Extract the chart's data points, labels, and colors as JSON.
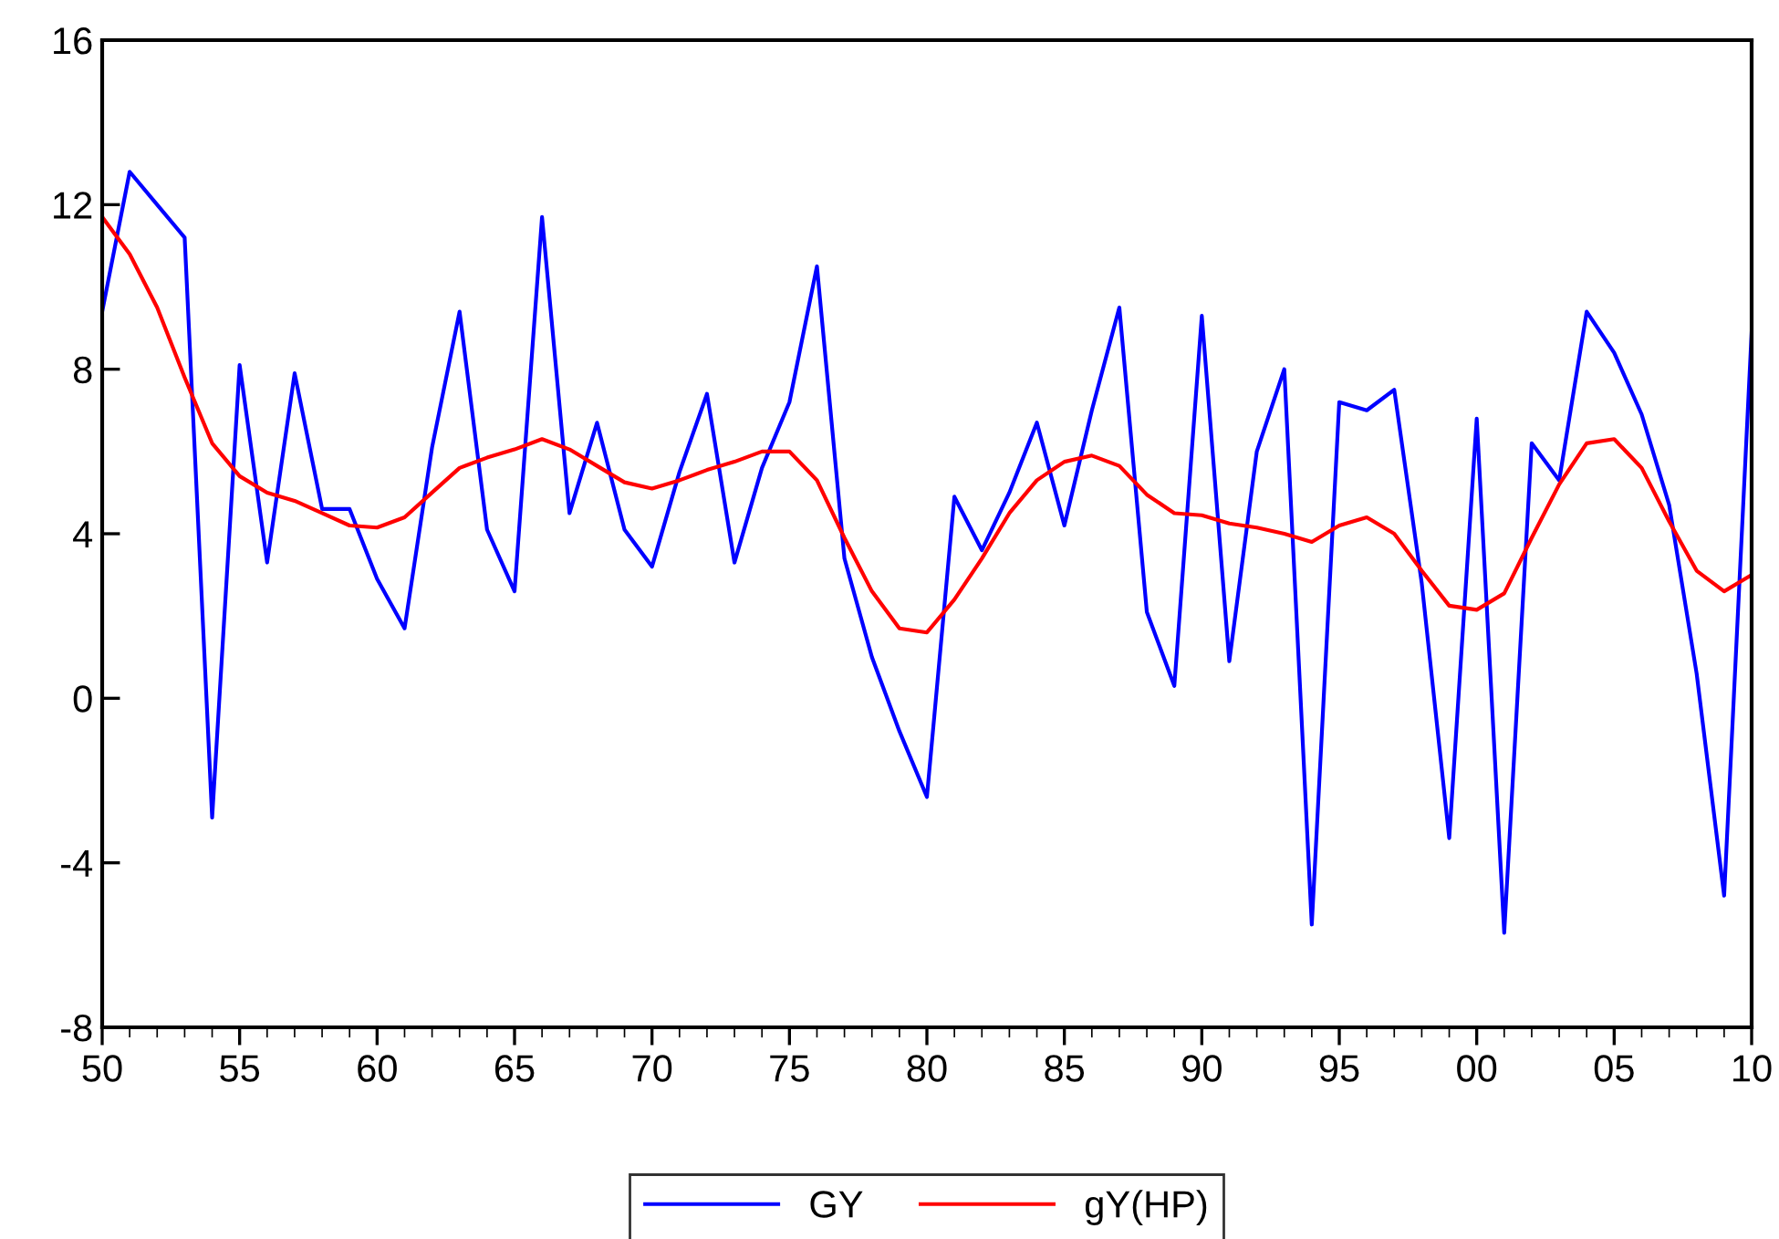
{
  "chart_data": {
    "type": "line",
    "x": [
      1950,
      1951,
      1952,
      1953,
      1954,
      1955,
      1956,
      1957,
      1958,
      1959,
      1960,
      1961,
      1962,
      1963,
      1964,
      1965,
      1966,
      1967,
      1968,
      1969,
      1970,
      1971,
      1972,
      1973,
      1974,
      1975,
      1976,
      1977,
      1978,
      1979,
      1980,
      1981,
      1982,
      1983,
      1984,
      1985,
      1986,
      1987,
      1988,
      1989,
      1990,
      1991,
      1992,
      1993,
      1994,
      1995,
      1996,
      1997,
      1998,
      1999,
      2000,
      2001,
      2002,
      2003,
      2004,
      2005,
      2006,
      2007,
      2008,
      2009,
      2010
    ],
    "series": [
      {
        "name": "GY",
        "color": "#0000ff",
        "values": [
          9.4,
          12.8,
          12.0,
          11.2,
          -2.9,
          8.1,
          3.3,
          7.9,
          4.6,
          4.6,
          2.9,
          1.7,
          6.1,
          9.4,
          4.1,
          2.6,
          11.7,
          4.5,
          6.7,
          4.1,
          3.2,
          5.5,
          7.4,
          3.3,
          5.6,
          7.2,
          10.5,
          3.4,
          1.0,
          -0.8,
          -2.4,
          4.9,
          3.6,
          5.0,
          6.7,
          4.2,
          7.0,
          9.5,
          2.1,
          0.3,
          9.3,
          0.9,
          6.0,
          8.0,
          -5.5,
          7.2,
          7.0,
          7.5,
          2.8,
          -3.4,
          6.8,
          -5.7,
          6.2,
          5.3,
          9.4,
          8.4,
          6.9,
          4.7,
          0.6,
          -4.8,
          8.9
        ]
      },
      {
        "name": "gY(HP)",
        "color": "#ff0000",
        "values": [
          11.7,
          10.8,
          9.5,
          7.8,
          6.2,
          5.4,
          5.0,
          4.8,
          4.5,
          4.2,
          4.15,
          4.4,
          5.0,
          5.6,
          5.85,
          6.05,
          6.3,
          6.05,
          5.65,
          5.25,
          5.1,
          5.3,
          5.55,
          5.75,
          6.0,
          6.0,
          5.3,
          3.9,
          2.6,
          1.7,
          1.6,
          2.4,
          3.4,
          4.5,
          5.3,
          5.75,
          5.9,
          5.65,
          4.95,
          4.5,
          4.45,
          4.25,
          4.15,
          4.0,
          3.8,
          4.2,
          4.4,
          4.0,
          3.1,
          2.25,
          2.15,
          2.55,
          3.9,
          5.2,
          6.2,
          6.3,
          5.6,
          4.3,
          3.1,
          2.6,
          3.0
        ]
      }
    ],
    "xlim": [
      1950,
      2010
    ],
    "xticks": [
      {
        "value": 1950,
        "label": "50"
      },
      {
        "value": 1955,
        "label": "55"
      },
      {
        "value": 1960,
        "label": "60"
      },
      {
        "value": 1965,
        "label": "65"
      },
      {
        "value": 1970,
        "label": "70"
      },
      {
        "value": 1975,
        "label": "75"
      },
      {
        "value": 1980,
        "label": "80"
      },
      {
        "value": 1985,
        "label": "85"
      },
      {
        "value": 1990,
        "label": "90"
      },
      {
        "value": 1995,
        "label": "95"
      },
      {
        "value": 2000,
        "label": "00"
      },
      {
        "value": 2005,
        "label": "05"
      },
      {
        "value": 2010,
        "label": "10"
      }
    ],
    "ylim": [
      -8,
      16
    ],
    "yticks": [
      -8,
      -4,
      0,
      4,
      8,
      12,
      16
    ],
    "grid": false,
    "legend": "bottom",
    "marker": "none",
    "line_style": "solid"
  }
}
